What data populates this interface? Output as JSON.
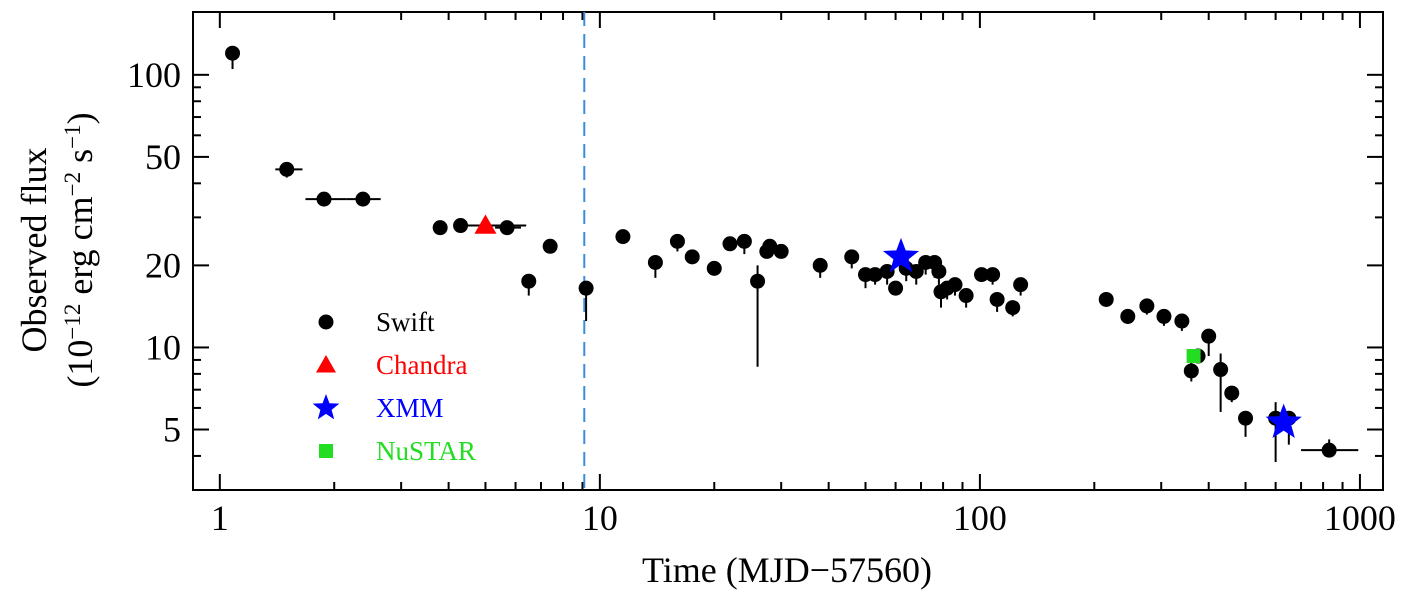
{
  "chart_data": {
    "type": "scatter",
    "x_scale": "log",
    "y_scale": "log",
    "xlim": [
      0.85,
      1150
    ],
    "ylim": [
      3.0,
      170
    ],
    "xlabel": "Time (MJD−57560)",
    "ylabel_line1": "Observed flux",
    "ylabel_line2_base": "(10",
    "ylabel_line2_exp1": "−12",
    "ylabel_line2_mid": " erg cm",
    "ylabel_line2_exp2": "−2",
    "ylabel_line2_mid2": " s",
    "ylabel_line2_exp3": "−1",
    "ylabel_line2_end": ")",
    "x_tick_labels": [
      "1",
      "10",
      "100",
      "1000"
    ],
    "x_tick_values": [
      1,
      10,
      100,
      1000
    ],
    "y_tick_labels": [
      "5",
      "10",
      "20",
      "50",
      "100"
    ],
    "y_tick_values": [
      5,
      10,
      20,
      50,
      100
    ],
    "vertical_line": {
      "x": 9.1,
      "style": "dashed",
      "color": "#3a8fd8"
    },
    "legend": {
      "placement": "lower-left",
      "entries": [
        {
          "label": "Swift",
          "marker": "circle",
          "color": "#000000"
        },
        {
          "label": "Chandra",
          "marker": "triangle",
          "color": "#ff0000"
        },
        {
          "label": "XMM",
          "marker": "star",
          "color": "#0000ff"
        },
        {
          "label": "NuSTAR",
          "marker": "square",
          "color": "#22dd22"
        }
      ]
    },
    "series": [
      {
        "name": "Swift",
        "marker": "circle",
        "color": "#000000",
        "points": [
          {
            "x": 1.08,
            "y": 120,
            "ylo": 105
          },
          {
            "x": 1.5,
            "y": 45,
            "xlo": 1.4,
            "xhi": 1.65,
            "ylo": 42
          },
          {
            "x": 1.88,
            "y": 35,
            "xlo": 1.68,
            "xhi": 2.15
          },
          {
            "x": 2.38,
            "y": 35,
            "xlo": 2.15,
            "xhi": 2.65
          },
          {
            "x": 3.8,
            "y": 27.5
          },
          {
            "x": 4.3,
            "y": 28
          },
          {
            "x": 5.7,
            "y": 27.5,
            "xlo": 5.3,
            "xhi": 6.2
          },
          {
            "x": 6.5,
            "y": 17.5,
            "ylo": 15.5
          },
          {
            "x": 7.4,
            "y": 23.5
          },
          {
            "x": 9.2,
            "y": 16.5,
            "ylo": 12.5
          },
          {
            "x": 11.5,
            "y": 25.5
          },
          {
            "x": 14,
            "y": 20.5,
            "ylo": 18
          },
          {
            "x": 16,
            "y": 24.5,
            "ylo": 22.5
          },
          {
            "x": 17.5,
            "y": 21.5
          },
          {
            "x": 20,
            "y": 19.5
          },
          {
            "x": 22,
            "y": 24
          },
          {
            "x": 24,
            "y": 24.5,
            "ylo": 22
          },
          {
            "x": 26,
            "y": 17.5,
            "ylo": 8.5,
            "yhi": 20
          },
          {
            "x": 27.5,
            "y": 22.5
          },
          {
            "x": 28,
            "y": 23.5
          },
          {
            "x": 30,
            "y": 22.5
          },
          {
            "x": 38,
            "y": 20,
            "ylo": 18
          },
          {
            "x": 46,
            "y": 21.5,
            "ylo": 19.5
          },
          {
            "x": 50,
            "y": 18.5,
            "ylo": 16.5
          },
          {
            "x": 53,
            "y": 18.5,
            "ylo": 17
          },
          {
            "x": 57,
            "y": 19,
            "ylo": 17
          },
          {
            "x": 60,
            "y": 16.5,
            "ylo": 15.5
          },
          {
            "x": 64,
            "y": 19.5,
            "ylo": 17.5
          },
          {
            "x": 68,
            "y": 19,
            "ylo": 17
          },
          {
            "x": 72,
            "y": 20.5,
            "ylo": 18.5
          },
          {
            "x": 76,
            "y": 20.5,
            "ylo": 18
          },
          {
            "x": 78,
            "y": 19,
            "ylo": 17
          },
          {
            "x": 79,
            "y": 16,
            "ylo": 14
          },
          {
            "x": 82,
            "y": 16.5,
            "ylo": 15
          },
          {
            "x": 86,
            "y": 17,
            "ylo": 15.5
          },
          {
            "x": 92,
            "y": 15.5,
            "ylo": 14
          },
          {
            "x": 101,
            "y": 18.5
          },
          {
            "x": 108,
            "y": 18.5,
            "ylo": 17
          },
          {
            "x": 111,
            "y": 15,
            "ylo": 13.5
          },
          {
            "x": 122,
            "y": 14,
            "ylo": 13
          },
          {
            "x": 128,
            "y": 17,
            "ylo": 15.5
          },
          {
            "x": 215,
            "y": 15
          },
          {
            "x": 245,
            "y": 13,
            "ylo": 12.2
          },
          {
            "x": 275,
            "y": 14.2,
            "ylo": 13.2
          },
          {
            "x": 305,
            "y": 13,
            "ylo": 12
          },
          {
            "x": 340,
            "y": 12.5,
            "ylo": 11.5
          },
          {
            "x": 360,
            "y": 8.2,
            "ylo": 7.5,
            "yhi": 9.5
          },
          {
            "x": 375,
            "y": 9.3
          },
          {
            "x": 400,
            "y": 11,
            "ylo": 9.3
          },
          {
            "x": 430,
            "y": 8.3,
            "ylo": 5.8,
            "yhi": 9.5
          },
          {
            "x": 460,
            "y": 6.8,
            "ylo": 6.3
          },
          {
            "x": 500,
            "y": 5.5,
            "ylo": 4.7
          },
          {
            "x": 600,
            "y": 5.5,
            "ylo": 3.8,
            "yhi": 6.3
          },
          {
            "x": 650,
            "y": 5.5,
            "ylo": 4.4
          },
          {
            "x": 830,
            "y": 4.2,
            "xlo": 700,
            "xhi": 990,
            "yhi": 4.6
          }
        ]
      },
      {
        "name": "Chandra",
        "marker": "triangle",
        "color": "#ff0000",
        "points": [
          {
            "x": 5.0,
            "y": 28,
            "xlo": 4.3,
            "xhi": 6.4
          }
        ]
      },
      {
        "name": "XMM",
        "marker": "star",
        "color": "#0000ff",
        "points": [
          {
            "x": 62,
            "y": 21.5
          },
          {
            "x": 630,
            "y": 5.3
          }
        ]
      },
      {
        "name": "NuSTAR",
        "marker": "square",
        "color": "#22dd22",
        "points": [
          {
            "x": 365,
            "y": 9.3
          }
        ]
      }
    ]
  }
}
